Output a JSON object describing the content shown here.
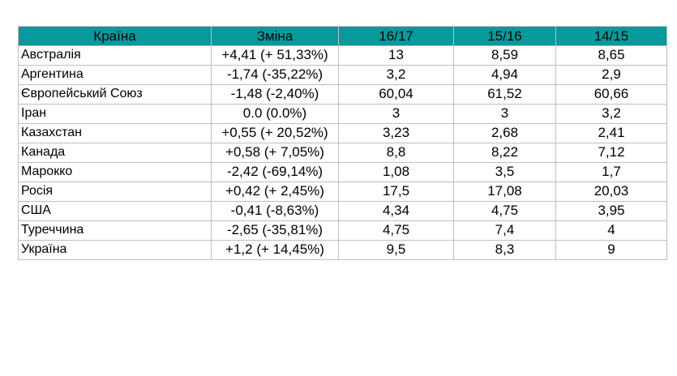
{
  "table": {
    "headers": {
      "country": "Країна",
      "change": "Зміна",
      "y1": "16/17",
      "y2": "15/16",
      "y3": "14/15"
    },
    "rows": [
      {
        "country": "Австралія",
        "change": "+4,41 (+ 51,33%)",
        "y1": "13",
        "y2": "8,59",
        "y3": "8,65"
      },
      {
        "country": "Аргентина",
        "change": "-1,74 (-35,22%)",
        "y1": "3,2",
        "y2": "4,94",
        "y3": "2,9"
      },
      {
        "country": "Європейський Союз",
        "change": "-1,48 (-2,40%)",
        "y1": "60,04",
        "y2": "61,52",
        "y3": "60,66"
      },
      {
        "country": "Іран",
        "change": "0.0 (0.0%)",
        "y1": "3",
        "y2": "3",
        "y3": "3,2"
      },
      {
        "country": "Казахстан",
        "change": "+0,55 (+ 20,52%)",
        "y1": "3,23",
        "y2": "2,68",
        "y3": "2,41"
      },
      {
        "country": "Канада",
        "change": "+0,58 (+ 7,05%)",
        "y1": "8,8",
        "y2": "8,22",
        "y3": "7,12"
      },
      {
        "country": "Марокко",
        "change": "-2,42 (-69,14%)",
        "y1": "1,08",
        "y2": "3,5",
        "y3": "1,7"
      },
      {
        "country": "Росія",
        "change": "+0,42 (+ 2,45%)",
        "y1": "17,5",
        "y2": "17,08",
        "y3": "20,03"
      },
      {
        "country": "США",
        "change": "-0,41 (-8,63%)",
        "y1": "4,34",
        "y2": "4,75",
        "y3": "3,95"
      },
      {
        "country": "Туреччина",
        "change": "-2,65 (-35,81%)",
        "y1": "4,75",
        "y2": "7,4",
        "y3": "4"
      },
      {
        "country": "Україна",
        "change": "+1,2 (+ 14,45%)",
        "y1": "9,5",
        "y2": "8,3",
        "y3": "9"
      }
    ]
  }
}
